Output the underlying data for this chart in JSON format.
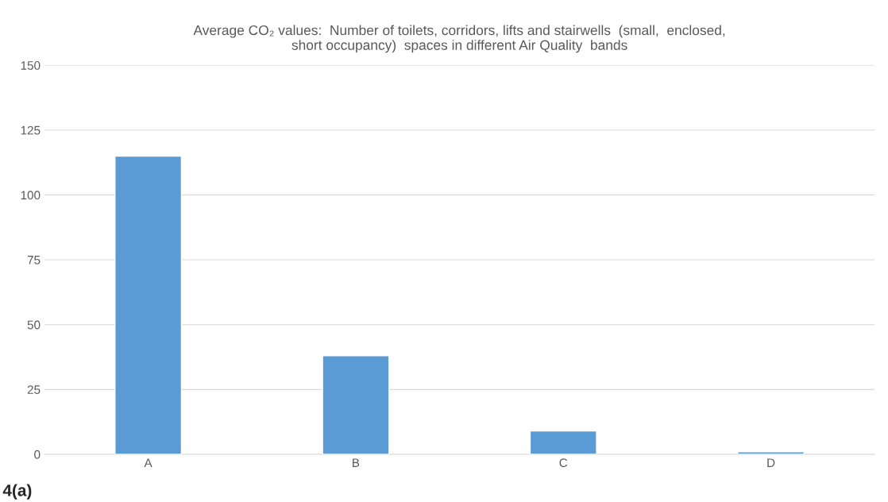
{
  "chart_data": {
    "type": "bar",
    "title": "Average CO₂ values:  Number of toilets, corridors, lifts and stairwells  (small,  enclosed,\nshort occupancy)  spaces in different Air Quality  bands",
    "categories": [
      "A",
      "B",
      "C",
      "D"
    ],
    "values": [
      115,
      38,
      9,
      1
    ],
    "color": "#5b9bd5",
    "ylim": [
      0,
      150
    ],
    "yticks": [
      0,
      25,
      50,
      75,
      100,
      125,
      150
    ],
    "grid": "y",
    "annotations": [
      "4(a)"
    ]
  }
}
